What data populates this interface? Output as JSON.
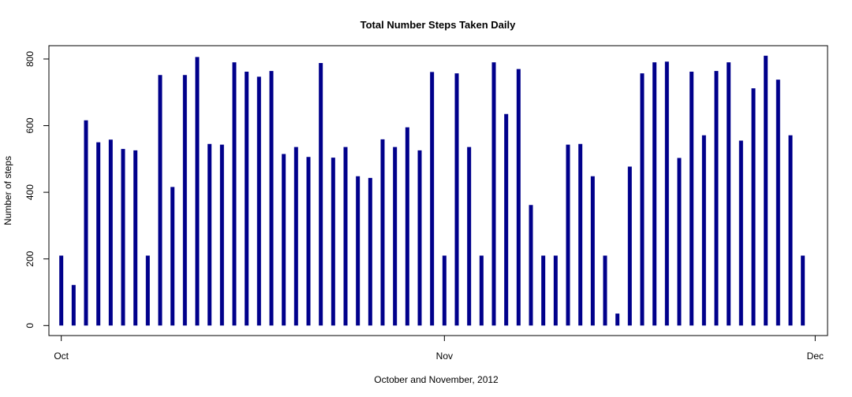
{
  "chart_data": {
    "type": "bar",
    "title": "Total Number Steps Taken Daily",
    "xlabel": "October and November, 2012",
    "ylabel": "Number of steps",
    "x_axis": {
      "type": "date",
      "ticks": [
        {
          "date": "2012-10-01",
          "label": "Oct"
        },
        {
          "date": "2012-11-01",
          "label": "Nov"
        },
        {
          "date": "2012-12-01",
          "label": "Dec"
        }
      ],
      "range": [
        "2012-09-30",
        "2012-12-02"
      ]
    },
    "y_axis": {
      "ticks": [
        0,
        200,
        400,
        600,
        800
      ],
      "range": [
        -30,
        840
      ]
    },
    "bar_color": "#00008B",
    "grid": false,
    "x": [
      "2012-10-01",
      "2012-10-02",
      "2012-10-03",
      "2012-10-04",
      "2012-10-05",
      "2012-10-06",
      "2012-10-07",
      "2012-10-08",
      "2012-10-09",
      "2012-10-10",
      "2012-10-11",
      "2012-10-12",
      "2012-10-13",
      "2012-10-14",
      "2012-10-15",
      "2012-10-16",
      "2012-10-17",
      "2012-10-18",
      "2012-10-19",
      "2012-10-20",
      "2012-10-21",
      "2012-10-22",
      "2012-10-23",
      "2012-10-24",
      "2012-10-25",
      "2012-10-26",
      "2012-10-27",
      "2012-10-28",
      "2012-10-29",
      "2012-10-30",
      "2012-10-31",
      "2012-11-01",
      "2012-11-02",
      "2012-11-03",
      "2012-11-04",
      "2012-11-05",
      "2012-11-06",
      "2012-11-07",
      "2012-11-08",
      "2012-11-09",
      "2012-11-10",
      "2012-11-11",
      "2012-11-12",
      "2012-11-13",
      "2012-11-14",
      "2012-11-15",
      "2012-11-16",
      "2012-11-17",
      "2012-11-18",
      "2012-11-19",
      "2012-11-20",
      "2012-11-21",
      "2012-11-22",
      "2012-11-23",
      "2012-11-24",
      "2012-11-25",
      "2012-11-26",
      "2012-11-27",
      "2012-11-28",
      "2012-11-29",
      "2012-11-30"
    ],
    "values": [
      210,
      122,
      616,
      550,
      558,
      530,
      526,
      210,
      752,
      416,
      752,
      806,
      545,
      543,
      790,
      762,
      747,
      764,
      515,
      536,
      506,
      788,
      504,
      536,
      448,
      443,
      559,
      536,
      595,
      526,
      761,
      210,
      757,
      536,
      210,
      790,
      635,
      770,
      362,
      210,
      210,
      543,
      545,
      448,
      210,
      36,
      477,
      757,
      790,
      792,
      503,
      762,
      571,
      764,
      790,
      555,
      712,
      810,
      738,
      571,
      210
    ]
  }
}
